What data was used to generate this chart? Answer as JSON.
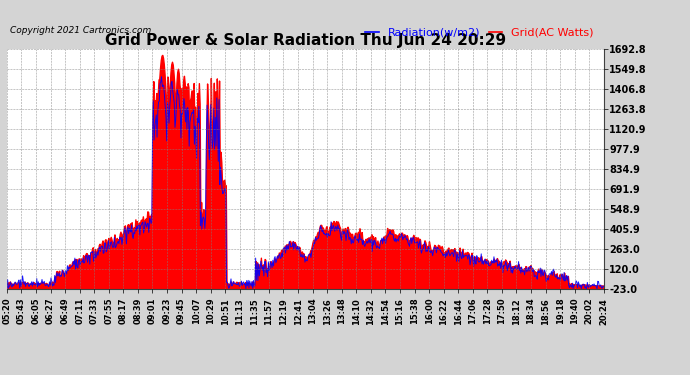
{
  "title": "Grid Power & Solar Radiation Thu Jun 24 20:29",
  "copyright": "Copyright 2021 Cartronics.com",
  "legend_radiation": "Radiation(w/m2)",
  "legend_grid": "Grid(AC Watts)",
  "yticks": [
    1692.8,
    1549.8,
    1406.8,
    1263.8,
    1120.9,
    977.9,
    834.9,
    691.9,
    548.9,
    405.9,
    263.0,
    120.0,
    -23.0
  ],
  "ymin": -23.0,
  "ymax": 1692.8,
  "background_color": "#d4d4d4",
  "plot_bg_color": "#ffffff",
  "radiation_color": "#ff0000",
  "grid_line_color": "#0000ff",
  "title_fontsize": 11,
  "copyright_fontsize": 6.5,
  "legend_fontsize": 8,
  "xtick_labels": [
    "05:20",
    "05:43",
    "06:05",
    "06:27",
    "06:49",
    "07:11",
    "07:33",
    "07:55",
    "08:17",
    "08:39",
    "09:01",
    "09:23",
    "09:45",
    "10:07",
    "10:29",
    "10:51",
    "11:13",
    "11:35",
    "11:57",
    "12:19",
    "12:41",
    "13:04",
    "13:26",
    "13:48",
    "14:10",
    "14:32",
    "14:54",
    "15:16",
    "15:38",
    "16:00",
    "16:22",
    "16:44",
    "17:06",
    "17:28",
    "17:50",
    "18:12",
    "18:34",
    "18:56",
    "19:18",
    "19:40",
    "20:02",
    "20:24"
  ]
}
